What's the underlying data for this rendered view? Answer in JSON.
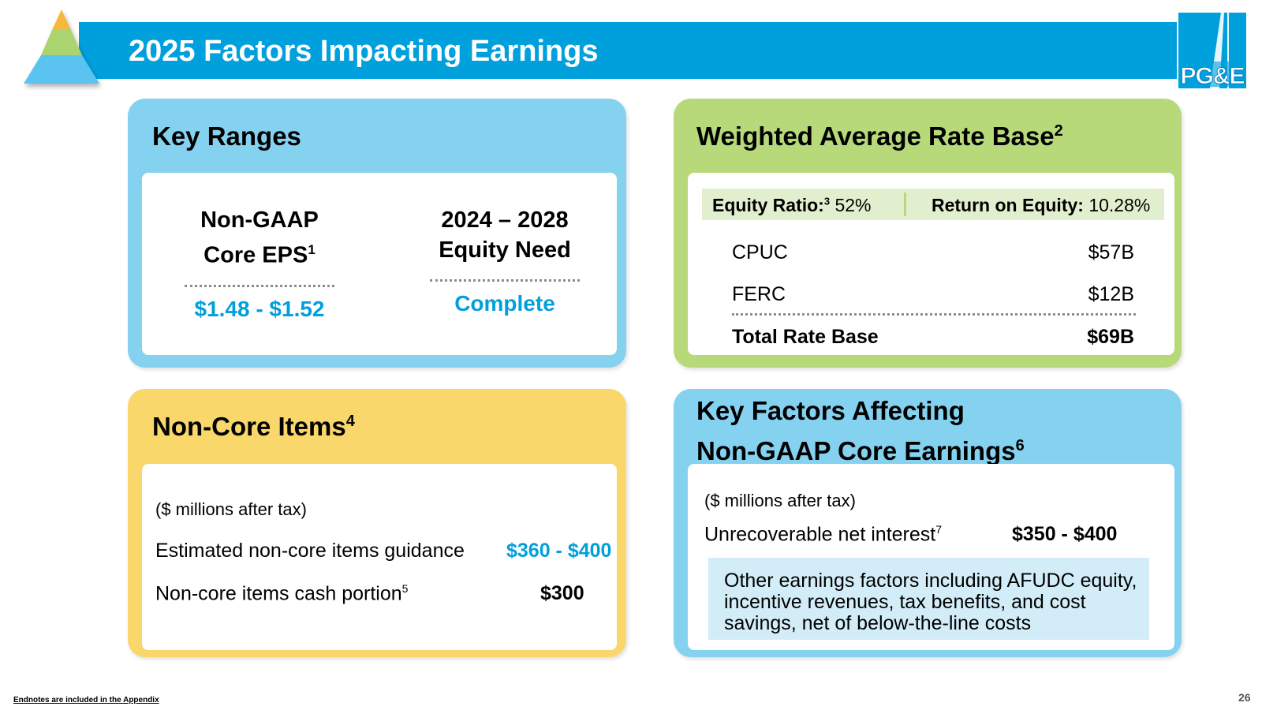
{
  "header": {
    "title": "2025 Factors Impacting Earnings",
    "logo_text": "PG&E"
  },
  "key_ranges": {
    "title": "Key Ranges",
    "eps": {
      "line1": "Non-GAAP",
      "line2": "Core EPS",
      "note": "1",
      "value": "$1.48 - $1.52"
    },
    "equity": {
      "line1": "2024 – 2028",
      "line2": "Equity Need",
      "value": "Complete"
    }
  },
  "rate_base": {
    "title": "Weighted Average Rate Base",
    "title_note": "2",
    "equity_ratio_label": "Equity Ratio:",
    "equity_ratio_note": "3",
    "equity_ratio_value": "52%",
    "roe_label": "Return on Equity:",
    "roe_value": "10.28%",
    "rows": [
      {
        "label": "CPUC",
        "value": "$57B"
      },
      {
        "label": "FERC",
        "value": "$12B"
      }
    ],
    "total": {
      "label": "Total Rate Base",
      "value": "$69B"
    }
  },
  "non_core": {
    "title": "Non-Core Items",
    "title_note": "4",
    "units": "($ millions after tax)",
    "guidance_label": "Estimated non-core items guidance",
    "guidance_value": "$360 - $400",
    "cash_label": "Non-core items cash portion",
    "cash_note": "5",
    "cash_value": "$300"
  },
  "key_factors": {
    "title_line1": "Key Factors Affecting",
    "title_line2": "Non-GAAP Core Earnings",
    "title_note": "6",
    "units": "($ millions after tax)",
    "interest_label": "Unrecoverable net interest",
    "interest_note": "7",
    "interest_value": "$350 - $400",
    "other_text": "Other earnings factors including AFUDC equity, incentive revenues, tax benefits, and cost savings, net of below-the-line costs"
  },
  "footer": {
    "endnotes": "Endnotes are included in the Appendix",
    "page_number": "26"
  },
  "colors": {
    "brand_blue": "#00a0dd",
    "panel_blue": "#84d2f0",
    "panel_green": "#b7d97a",
    "panel_yellow": "#f9d76b"
  }
}
